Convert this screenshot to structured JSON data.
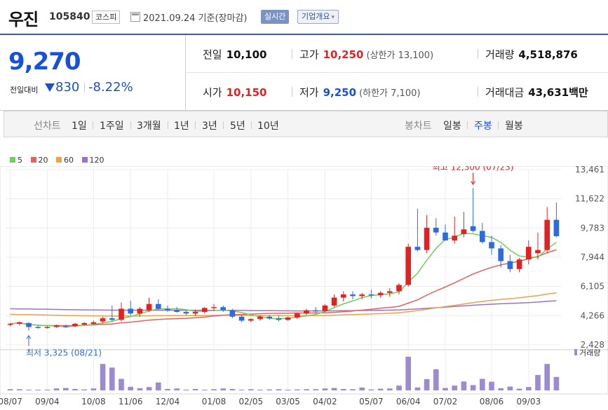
{
  "header": {
    "stock_name": "우진",
    "stock_code": "105840",
    "market": "코스피",
    "date_text": "2021.09.24 기준(장마감)",
    "realtime_button": "실시간",
    "company_info_button": "기업개요",
    "company_info_arrow": "▾"
  },
  "price": {
    "current": "9,270",
    "diff_label": "전일대비",
    "diff_value": "830",
    "diff_percent": "-8.22%",
    "rows": [
      [
        {
          "label": "전일",
          "value": "10,100",
          "color": "#111111"
        },
        {
          "label": "고가",
          "value": "10,250",
          "color": "#e22222",
          "sub": "(상한가 13,100)"
        },
        {
          "label": "거래량",
          "value": "4,518,876",
          "color": "#111111"
        }
      ],
      [
        {
          "label": "시가",
          "value": "10,150",
          "color": "#e22222"
        },
        {
          "label": "저가",
          "value": "9,250",
          "color": "#1752d6",
          "sub": "(하한가 7,100)"
        },
        {
          "label": "거래대금",
          "value": "43,631",
          "color": "#111111",
          "unit": "백만"
        }
      ]
    ]
  },
  "tabs": {
    "line_chart": "선차트",
    "line_periods": [
      "1일",
      "1주일",
      "3개월",
      "1년",
      "3년",
      "5년",
      "10년"
    ],
    "candle_chart": "봉차트",
    "candle_periods": [
      "일봉",
      "주봉",
      "월봉"
    ],
    "active_candle": "주봉"
  },
  "colors": {
    "up": "#e22222",
    "down": "#2c6ddc",
    "ma5": "#6fcf58",
    "ma20": "#e86060",
    "ma60": "#f0a048",
    "ma120": "#a070c8",
    "volume": "#9c8bd0"
  },
  "chart_data": {
    "type": "candlestick",
    "legend": [
      {
        "name": "5",
        "color": "#6fcf58"
      },
      {
        "name": "20",
        "color": "#e86060"
      },
      {
        "name": "60",
        "color": "#f0a048"
      },
      {
        "name": "120",
        "color": "#a070c8"
      }
    ],
    "y_ticks": [
      "13,461",
      "11,622",
      "9,783",
      "7,944",
      "6,105",
      "4,266",
      "2,428"
    ],
    "y_tick_values": [
      13461,
      11622,
      9783,
      7944,
      6105,
      4266,
      2428
    ],
    "ylim": [
      2428,
      13461
    ],
    "x_ticks": [
      {
        "label": "08/07",
        "index": 0
      },
      {
        "label": "09/04",
        "index": 4
      },
      {
        "label": "10/08",
        "index": 9
      },
      {
        "label": "11/06",
        "index": 13
      },
      {
        "label": "12/04",
        "index": 17
      },
      {
        "label": "01/08",
        "index": 22
      },
      {
        "label": "02/05",
        "index": 26
      },
      {
        "label": "03/05",
        "index": 30
      },
      {
        "label": "04/02",
        "index": 34
      },
      {
        "label": "05/07",
        "index": 39
      },
      {
        "label": "06/04",
        "index": 43
      },
      {
        "label": "07/02",
        "index": 47
      },
      {
        "label": "08/06",
        "index": 52
      },
      {
        "label": "09/03",
        "index": 56
      }
    ],
    "annotations": [
      {
        "text": "최고 12,300 (07/23)",
        "index": 50,
        "value": 12300,
        "position": "above",
        "color": "#e22222"
      },
      {
        "text": "최저 3,325 (08/21)",
        "index": 2,
        "value": 3325,
        "position": "below",
        "color": "#2c6ddc"
      }
    ],
    "volume_label": "거래량",
    "candles": [
      [
        3700,
        3800,
        3600,
        3750
      ],
      [
        3750,
        3900,
        3650,
        3850
      ],
      [
        3800,
        3850,
        3325,
        3550
      ],
      [
        3550,
        3650,
        3450,
        3500
      ],
      [
        3500,
        3600,
        3450,
        3550
      ],
      [
        3550,
        3700,
        3500,
        3650
      ],
      [
        3600,
        3700,
        3500,
        3550
      ],
      [
        3600,
        3800,
        3550,
        3750
      ],
      [
        3700,
        3850,
        3650,
        3800
      ],
      [
        3750,
        3950,
        3700,
        3850
      ],
      [
        3900,
        4200,
        3800,
        4100
      ],
      [
        4100,
        4900,
        3900,
        4000
      ],
      [
        4000,
        5100,
        3900,
        4700
      ],
      [
        4700,
        5200,
        4300,
        4400
      ],
      [
        4400,
        4800,
        4200,
        4700
      ],
      [
        4600,
        5400,
        4500,
        5000
      ],
      [
        5000,
        5300,
        4600,
        4700
      ],
      [
        4700,
        4900,
        4500,
        4600
      ],
      [
        4600,
        4800,
        4450,
        4500
      ],
      [
        4500,
        4600,
        4300,
        4400
      ],
      [
        4400,
        4650,
        4250,
        4500
      ],
      [
        4500,
        4800,
        4400,
        4750
      ],
      [
        4750,
        5000,
        4550,
        4800
      ],
      [
        4800,
        4900,
        4500,
        4600
      ],
      [
        4600,
        4700,
        4100,
        4200
      ],
      [
        4200,
        4300,
        3850,
        3950
      ],
      [
        3950,
        4100,
        3850,
        4050
      ],
      [
        4050,
        4300,
        3950,
        4200
      ],
      [
        4200,
        4300,
        4000,
        4100
      ],
      [
        4100,
        4250,
        3900,
        4000
      ],
      [
        4000,
        4200,
        3950,
        4150
      ],
      [
        4150,
        4450,
        4050,
        4400
      ],
      [
        4400,
        4700,
        4300,
        4600
      ],
      [
        4600,
        4800,
        4400,
        4550
      ],
      [
        4550,
        5000,
        4500,
        4900
      ],
      [
        4900,
        5600,
        4800,
        5400
      ],
      [
        5400,
        5800,
        5150,
        5600
      ],
      [
        5600,
        5800,
        5300,
        5500
      ],
      [
        5500,
        5700,
        5300,
        5600
      ],
      [
        5600,
        5900,
        5350,
        5550
      ],
      [
        5550,
        5800,
        5400,
        5700
      ],
      [
        5700,
        6000,
        5450,
        5800
      ],
      [
        5800,
        6300,
        5600,
        6200
      ],
      [
        6200,
        8800,
        6100,
        8600
      ],
      [
        8600,
        11000,
        8300,
        8400
      ],
      [
        8400,
        10600,
        8200,
        9800
      ],
      [
        9800,
        10400,
        9300,
        9500
      ],
      [
        9500,
        10000,
        9000,
        9000
      ],
      [
        9000,
        10500,
        8800,
        9300
      ],
      [
        9400,
        10800,
        9200,
        9700
      ],
      [
        9900,
        12300,
        9500,
        9600
      ],
      [
        9600,
        10100,
        8800,
        8900
      ],
      [
        8900,
        9300,
        8100,
        8500
      ],
      [
        8500,
        8700,
        7300,
        7700
      ],
      [
        7700,
        8100,
        7000,
        7200
      ],
      [
        7200,
        7900,
        7000,
        7800
      ],
      [
        7800,
        9000,
        7500,
        8600
      ],
      [
        8200,
        9500,
        7800,
        8400
      ],
      [
        8400,
        11100,
        8200,
        10300
      ],
      [
        10300,
        11400,
        9200,
        9270
      ]
    ],
    "volume": [
      5,
      5,
      3,
      3,
      3,
      8,
      10,
      6,
      4,
      8,
      110,
      95,
      48,
      15,
      9,
      14,
      33,
      6,
      8,
      3,
      6,
      3,
      5,
      8,
      6,
      3,
      5,
      3,
      4,
      5,
      3,
      4,
      5,
      5,
      8,
      10,
      6,
      5,
      12,
      4,
      7,
      8,
      20,
      140,
      12,
      47,
      88,
      10,
      20,
      37,
      22,
      48,
      36,
      9,
      16,
      7,
      14,
      64,
      110,
      56
    ]
  }
}
